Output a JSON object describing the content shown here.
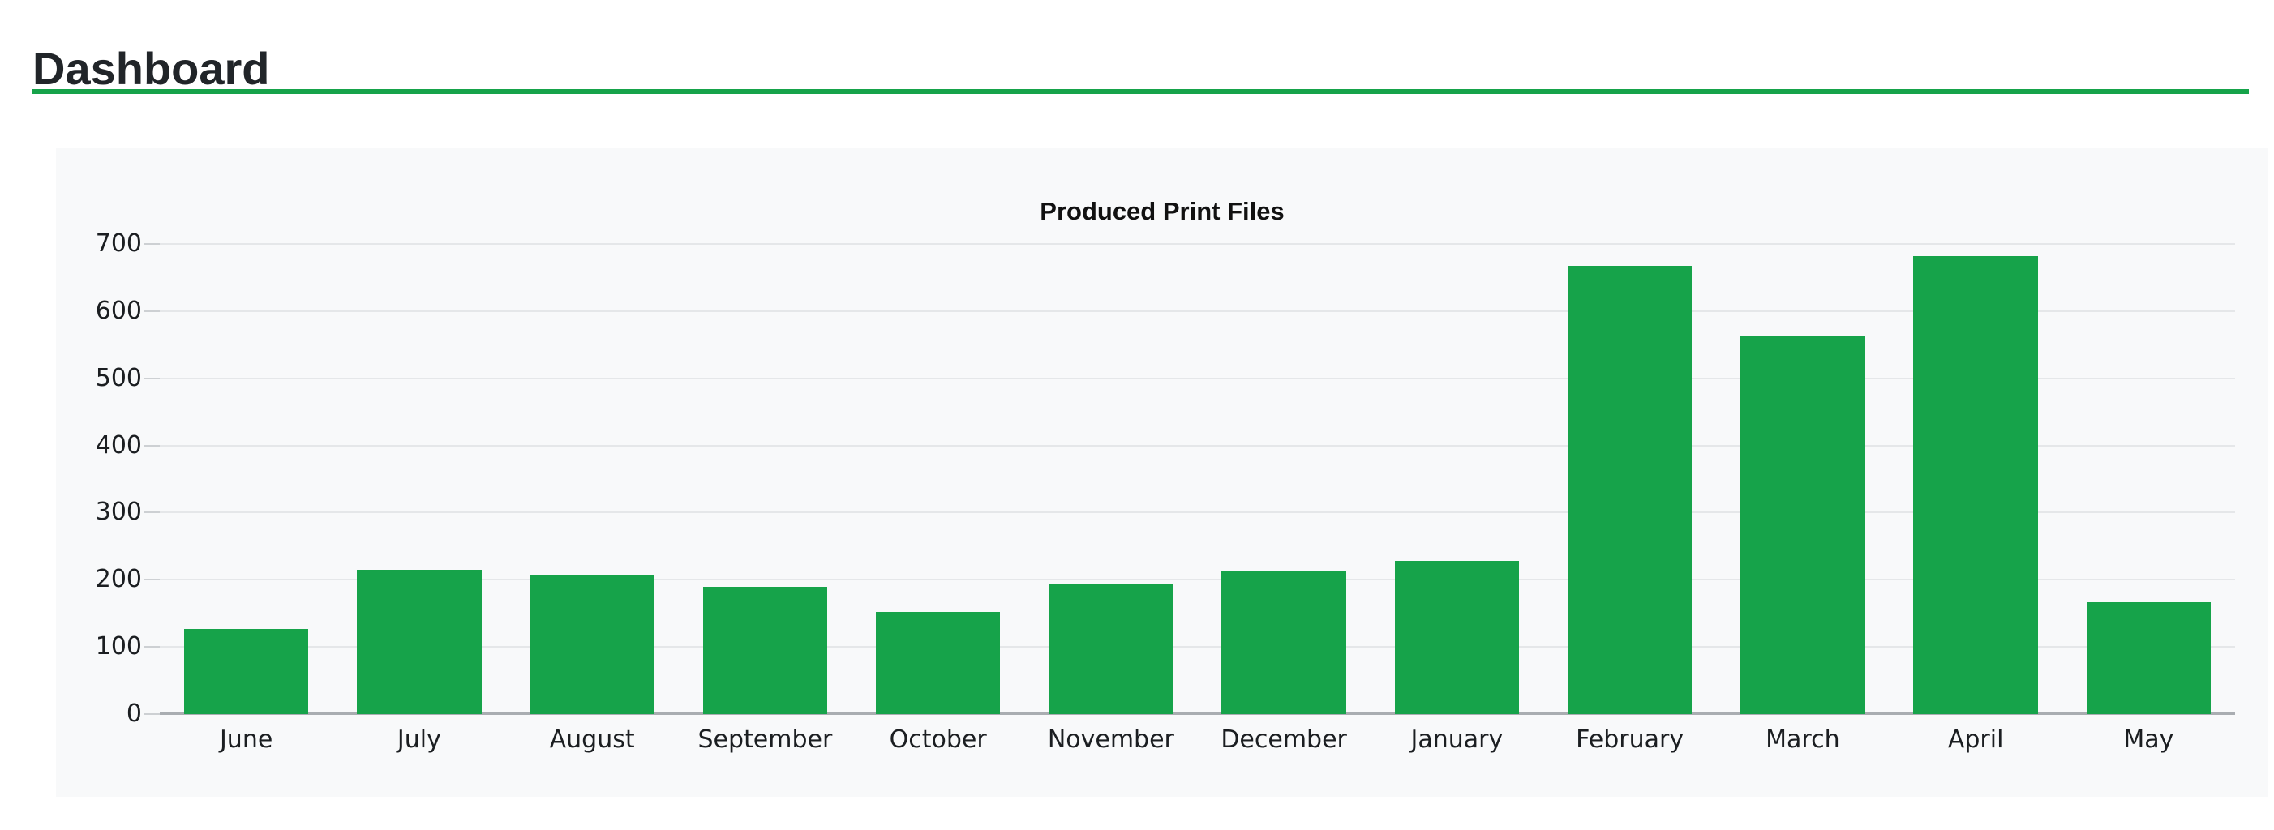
{
  "page": {
    "title": "Dashboard"
  },
  "theme": {
    "accent_green": "#16a34a",
    "bar_color": "#16a34a",
    "bar_border": "rgba(22,163,74,.45)",
    "card_bg": "#f8f9fa",
    "grid_color": "#e5e7e9",
    "axis_color": "#a9adb1",
    "tick_color": "#cdd0d3",
    "heading_color": "#212529",
    "text_color": "#1b1e21",
    "page_bg": "#ffffff"
  },
  "chart_data": {
    "type": "bar",
    "title": "Produced Print Files",
    "categories": [
      "June",
      "July",
      "August",
      "September",
      "October",
      "November",
      "December",
      "January",
      "February",
      "March",
      "April",
      "May"
    ],
    "values": [
      127,
      215,
      207,
      189,
      152,
      193,
      212,
      228,
      668,
      562,
      682,
      166
    ],
    "xlabel": "",
    "ylabel": "",
    "ylim": [
      0,
      700
    ],
    "ytick_step": 100,
    "ytick_labels": [
      "0",
      "100",
      "200",
      "300",
      "400",
      "500",
      "600",
      "700"
    ],
    "grid": true,
    "legend": false,
    "bar_width_fraction": 0.72
  }
}
